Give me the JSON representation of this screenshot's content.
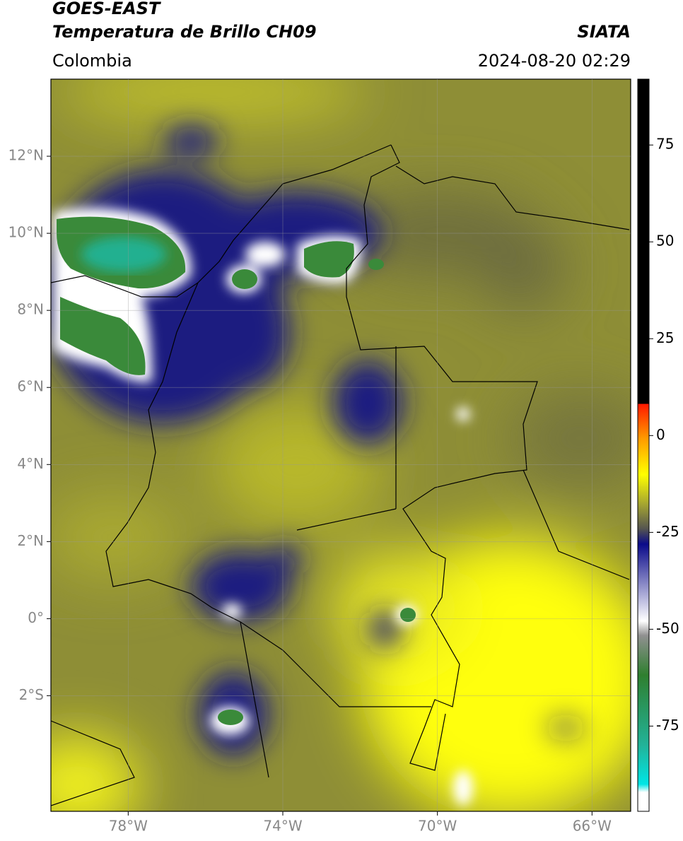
{
  "header": {
    "satellite": "GOES-EAST",
    "product": "Temperatura de Brillo CH09",
    "source": "SIATA",
    "region": "Colombia",
    "datetime": "2024-08-20 02:29"
  },
  "map": {
    "lon_range": [
      -80,
      -65
    ],
    "lat_range": [
      -5,
      14
    ],
    "grid": true,
    "lat_ticks": [
      {
        "value": 12,
        "label": "12°N"
      },
      {
        "value": 10,
        "label": "10°N"
      },
      {
        "value": 8,
        "label": "8°N"
      },
      {
        "value": 6,
        "label": "6°N"
      },
      {
        "value": 4,
        "label": "4°N"
      },
      {
        "value": 2,
        "label": "2°N"
      },
      {
        "value": 0,
        "label": "0°"
      },
      {
        "value": -2,
        "label": "2°S"
      }
    ],
    "lon_ticks": [
      {
        "value": -78,
        "label": "78°W"
      },
      {
        "value": -74,
        "label": "74°W"
      },
      {
        "value": -70,
        "label": "70°W"
      },
      {
        "value": -66,
        "label": "66°W"
      }
    ]
  },
  "colorbar": {
    "range": [
      -97,
      92
    ],
    "ticks": [
      75,
      50,
      25,
      0,
      -25,
      -50,
      -75
    ]
  }
}
